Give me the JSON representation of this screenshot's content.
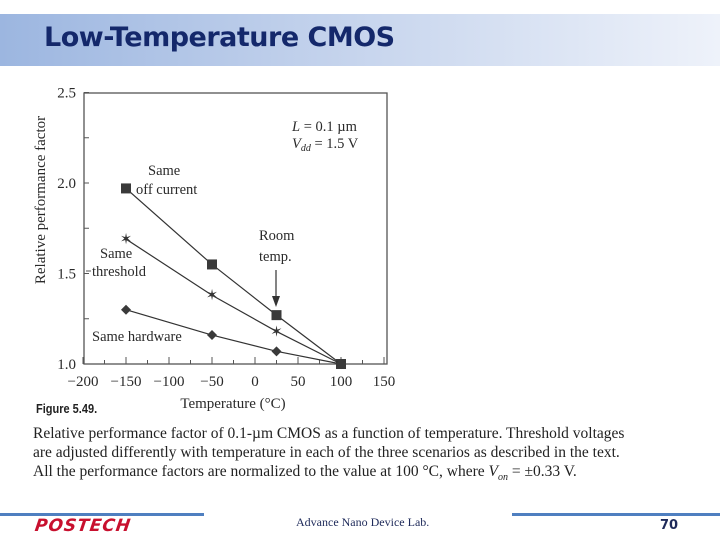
{
  "slide": {
    "title": "Low-Temperature CMOS",
    "figure_label": "Figure 5.49.",
    "caption": [
      "Relative performance factor of 0.1-µm CMOS as a function of temperature. Threshold voltages",
      "are adjusted differently with temperature in each of the three scenarios as described in the text.",
      "All the performance factors are normalized to the value at 100 °C, where V_on = ±0.33 V."
    ],
    "caption_parts": {
      "line3_prefix": "All the performance factors are normalized to the value at 100 °C, where ",
      "line3_var": "V",
      "line3_sub": "on",
      "line3_suffix": " = ±0.33 V."
    }
  },
  "footer": {
    "logo": "POSTECH",
    "lab": "Advance Nano Device Lab.",
    "page": "70",
    "accent_color": "#4f7fc0",
    "logo_color": "#c8102e"
  },
  "chart_data": {
    "type": "line",
    "title": "",
    "xlabel": "Temperature (°C)",
    "ylabel": "Relative performance factor",
    "xlim": [
      -200,
      150
    ],
    "ylim": [
      1.0,
      2.5
    ],
    "x_ticks": [
      "−200",
      "−150",
      "−100",
      "−50",
      "0",
      "50",
      "100",
      "150"
    ],
    "y_ticks": [
      "1.0",
      "1.5",
      "2.0",
      "2.5"
    ],
    "grid": false,
    "legend": "inline labels",
    "x": [
      -150,
      -50,
      25,
      100
    ],
    "series": [
      {
        "name": "Same off current",
        "marker": "square",
        "values": [
          1.97,
          1.55,
          1.27,
          1.0
        ]
      },
      {
        "name": "Same threshold",
        "marker": "star",
        "values": [
          1.69,
          1.38,
          1.18,
          1.0
        ]
      },
      {
        "name": "Same hardware",
        "marker": "diamond",
        "values": [
          1.3,
          1.16,
          1.07,
          1.0
        ]
      }
    ],
    "annotations": [
      {
        "text": "L = 0.1 µm",
        "position": "top-right"
      },
      {
        "text": "Vdd = 1.5 V",
        "position": "top-right"
      },
      {
        "text": "Room temp.",
        "arrow_to_x": 25
      }
    ],
    "labels": {
      "off_current_1": "Same",
      "off_current_2": "off  current",
      "threshold_1": "Same",
      "threshold_2": "threshold",
      "hardware": "Same hardware",
      "room_1": "Room",
      "room_2": "temp.",
      "param_L_var": "L",
      "param_L_val": " = 0.1 µm",
      "param_V_var": "V",
      "param_V_sub": "dd",
      "param_V_val": " = 1.5 V"
    }
  }
}
